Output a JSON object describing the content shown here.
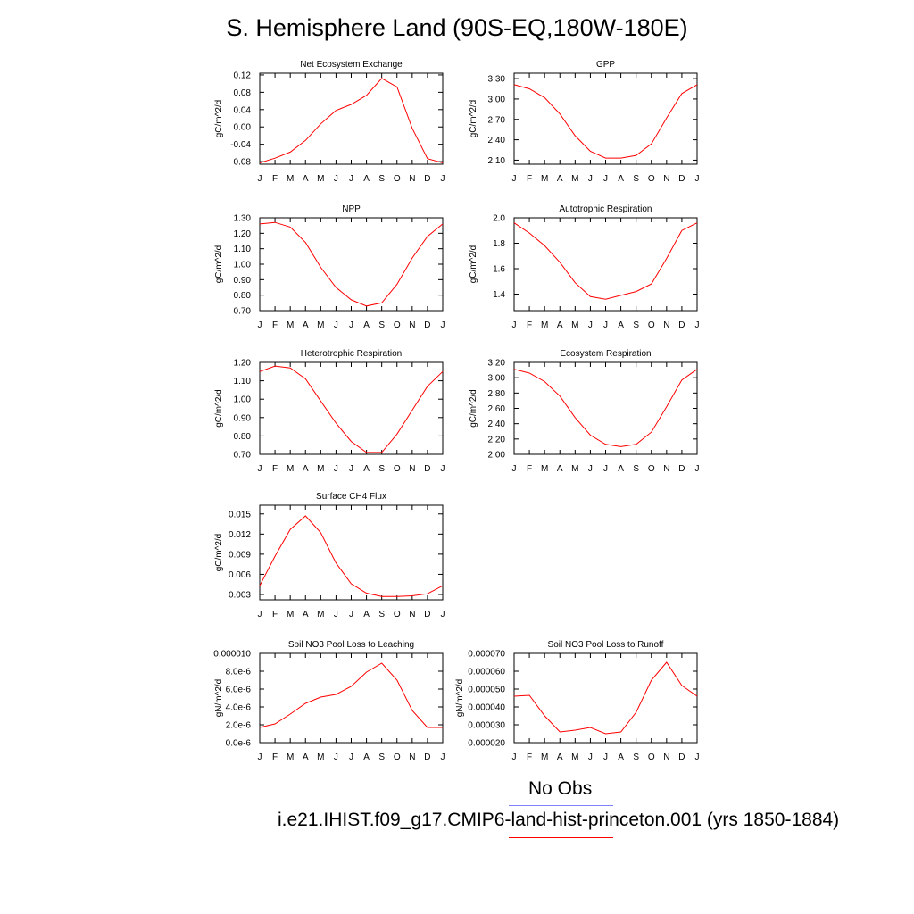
{
  "title": "S. Hemisphere Land (90S-EQ,180W-180E)",
  "legend": [
    {
      "label": "No Obs",
      "color": "#8080ff"
    },
    {
      "label": "i.e21.IHIST.f09_g17.CMIP6-land-hist-princeton.001 (yrs 1850-1884)",
      "color": "#ff0000"
    }
  ],
  "series_color": "#ff0000",
  "chart_data": [
    {
      "type": "line",
      "title": "Net Ecosystem Exchange",
      "ylabel": "gC/m^2/d",
      "categories": [
        "J",
        "F",
        "M",
        "A",
        "M",
        "J",
        "J",
        "A",
        "S",
        "O",
        "N",
        "D",
        "J"
      ],
      "values": [
        -0.083,
        -0.072,
        -0.058,
        -0.031,
        0.007,
        0.038,
        0.052,
        0.073,
        0.112,
        0.092,
        -0.003,
        -0.073,
        -0.083
      ],
      "ylim": [
        -0.086,
        0.124
      ],
      "yticks": [
        -0.08,
        -0.04,
        0.0,
        0.04,
        0.08,
        0.12
      ],
      "yticklabels": [
        "-0.08",
        "-0.04",
        "0.00",
        "0.04",
        "0.08",
        "0.12"
      ]
    },
    {
      "type": "line",
      "title": "GPP",
      "ylabel": "gC/m^2/d",
      "categories": [
        "J",
        "F",
        "M",
        "A",
        "M",
        "J",
        "J",
        "A",
        "S",
        "O",
        "N",
        "D",
        "J"
      ],
      "values": [
        3.21,
        3.15,
        3.02,
        2.78,
        2.46,
        2.23,
        2.13,
        2.13,
        2.17,
        2.34,
        2.72,
        3.08,
        3.21
      ],
      "ylim": [
        2.04,
        3.38
      ],
      "yticks": [
        2.1,
        2.4,
        2.7,
        3.0,
        3.3
      ],
      "yticklabels": [
        "2.10",
        "2.40",
        "2.70",
        "3.00",
        "3.30"
      ]
    },
    {
      "type": "line",
      "title": "NPP",
      "ylabel": "gC/m^2/d",
      "categories": [
        "J",
        "F",
        "M",
        "A",
        "M",
        "J",
        "J",
        "A",
        "S",
        "O",
        "N",
        "D",
        "J"
      ],
      "values": [
        1.26,
        1.27,
        1.24,
        1.14,
        0.98,
        0.85,
        0.77,
        0.73,
        0.75,
        0.87,
        1.04,
        1.18,
        1.26
      ],
      "ylim": [
        0.7,
        1.3
      ],
      "yticks": [
        0.7,
        0.8,
        0.9,
        1.0,
        1.1,
        1.2,
        1.3
      ],
      "yticklabels": [
        "0.70",
        "0.80",
        "0.90",
        "1.00",
        "1.10",
        "1.20",
        "1.30"
      ]
    },
    {
      "type": "line",
      "title": "Autotrophic Respiration",
      "ylabel": "gC/m^2/d",
      "categories": [
        "J",
        "F",
        "M",
        "A",
        "M",
        "J",
        "J",
        "A",
        "S",
        "O",
        "N",
        "D",
        "J"
      ],
      "values": [
        1.96,
        1.88,
        1.78,
        1.65,
        1.49,
        1.38,
        1.36,
        1.39,
        1.42,
        1.48,
        1.68,
        1.9,
        1.96
      ],
      "ylim": [
        1.27,
        2.0
      ],
      "yticks": [
        1.4,
        1.6,
        1.8,
        2.0
      ],
      "yticklabels": [
        "1.4",
        "1.6",
        "1.8",
        "2.0"
      ]
    },
    {
      "type": "line",
      "title": "Heterotrophic Respiration",
      "ylabel": "gC/m^2/d",
      "categories": [
        "J",
        "F",
        "M",
        "A",
        "M",
        "J",
        "J",
        "A",
        "S",
        "O",
        "N",
        "D",
        "J"
      ],
      "values": [
        1.15,
        1.18,
        1.17,
        1.11,
        0.99,
        0.87,
        0.77,
        0.71,
        0.71,
        0.81,
        0.94,
        1.07,
        1.15
      ],
      "ylim": [
        0.7,
        1.2
      ],
      "yticks": [
        0.7,
        0.8,
        0.9,
        1.0,
        1.1,
        1.2
      ],
      "yticklabels": [
        "0.70",
        "0.80",
        "0.90",
        "1.00",
        "1.10",
        "1.20"
      ]
    },
    {
      "type": "line",
      "title": "Ecosystem Respiration",
      "ylabel": "gC/m^2/d",
      "categories": [
        "J",
        "F",
        "M",
        "A",
        "M",
        "J",
        "J",
        "A",
        "S",
        "O",
        "N",
        "D",
        "J"
      ],
      "values": [
        3.11,
        3.06,
        2.95,
        2.76,
        2.48,
        2.25,
        2.13,
        2.1,
        2.13,
        2.29,
        2.62,
        2.97,
        3.11
      ],
      "ylim": [
        2.0,
        3.2
      ],
      "yticks": [
        2.0,
        2.2,
        2.4,
        2.6,
        2.8,
        3.0,
        3.2
      ],
      "yticklabels": [
        "2.00",
        "2.20",
        "2.40",
        "2.60",
        "2.80",
        "3.00",
        "3.20"
      ]
    },
    {
      "type": "line",
      "title": "Surface CH4 Flux",
      "ylabel": "gC/m^2/d",
      "categories": [
        "J",
        "F",
        "M",
        "A",
        "M",
        "J",
        "J",
        "A",
        "S",
        "O",
        "N",
        "D",
        "J"
      ],
      "values": [
        0.0043,
        0.0087,
        0.0127,
        0.0147,
        0.0122,
        0.0077,
        0.0046,
        0.0032,
        0.0027,
        0.0027,
        0.0028,
        0.0031,
        0.0043
      ],
      "ylim": [
        0.0022,
        0.0163
      ],
      "yticks": [
        0.003,
        0.006,
        0.009,
        0.012,
        0.015
      ],
      "yticklabels": [
        "0.003",
        "0.006",
        "0.009",
        "0.012",
        "0.015"
      ]
    },
    {
      "type": "line",
      "title": "Soil NO3 Pool Loss to Leaching",
      "ylabel": "gN/m^2/d",
      "categories": [
        "J",
        "F",
        "M",
        "A",
        "M",
        "J",
        "J",
        "A",
        "S",
        "O",
        "N",
        "D",
        "J"
      ],
      "values": [
        1.7e-06,
        2.1e-06,
        3.2e-06,
        4.4e-06,
        5.1e-06,
        5.4e-06,
        6.3e-06,
        7.9e-06,
        8.9e-06,
        7e-06,
        3.6e-06,
        1.7e-06,
        1.7e-06
      ],
      "ylim": [
        0,
        1e-05
      ],
      "yticks": [
        0,
        2e-06,
        4e-06,
        6e-06,
        8e-06,
        1e-05
      ],
      "yticklabels": [
        "0.0e-6",
        "2.0e-6",
        "4.0e-6",
        "6.0e-6",
        "8.0e-6",
        "0.000010"
      ]
    },
    {
      "type": "line",
      "title": "Soil NO3 Pool Loss to Runoff",
      "ylabel": "gN/m^2/d",
      "categories": [
        "J",
        "F",
        "M",
        "A",
        "M",
        "J",
        "J",
        "A",
        "S",
        "O",
        "N",
        "D",
        "J"
      ],
      "values": [
        4.6e-05,
        4.65e-05,
        3.5e-05,
        2.6e-05,
        2.7e-05,
        2.85e-05,
        2.5e-05,
        2.6e-05,
        3.7e-05,
        5.5e-05,
        6.5e-05,
        5.2e-05,
        4.6e-05
      ],
      "ylim": [
        2e-05,
        7e-05
      ],
      "yticks": [
        2e-05,
        3e-05,
        4e-05,
        5e-05,
        6e-05,
        7e-05
      ],
      "yticklabels": [
        "0.000020",
        "0.000030",
        "0.000040",
        "0.000050",
        "0.000060",
        "0.000070"
      ]
    }
  ]
}
